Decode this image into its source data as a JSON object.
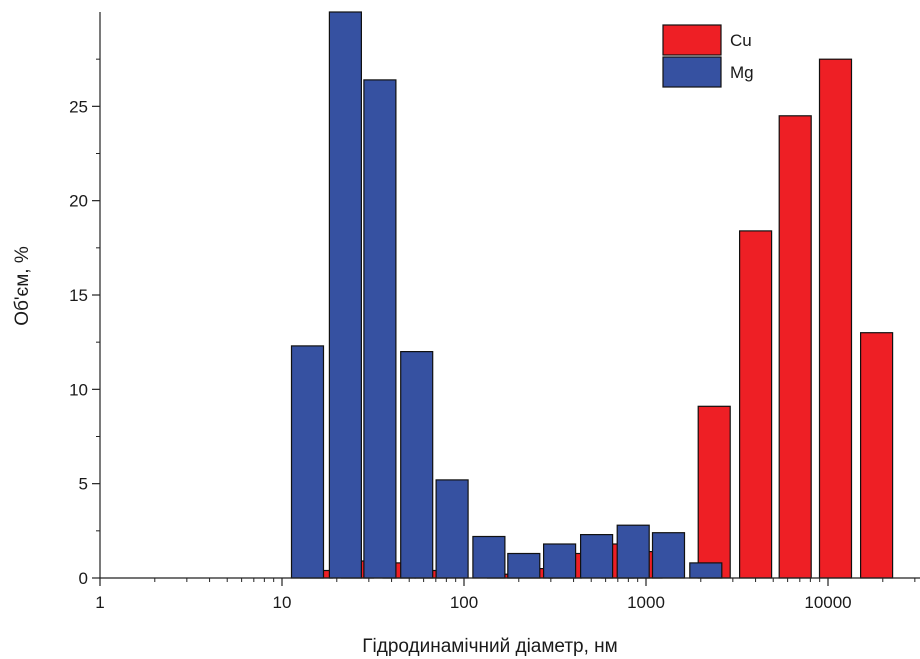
{
  "chart_data": {
    "type": "bar",
    "xlabel": "Гідродинамічний діаметр, нм",
    "ylabel": "Об'єм, %",
    "x_scale": "log",
    "xlim": [
      1,
      30000
    ],
    "ylim": [
      0,
      30
    ],
    "x_ticks": [
      {
        "value": 1,
        "label": "1"
      },
      {
        "value": 10,
        "label": "10"
      },
      {
        "value": 100,
        "label": "100"
      },
      {
        "value": 1000,
        "label": "1000"
      },
      {
        "value": 10000,
        "label": "10000"
      }
    ],
    "y_ticks": [
      {
        "value": 0,
        "label": "0"
      },
      {
        "value": 5,
        "label": "5"
      },
      {
        "value": 10,
        "label": "10"
      },
      {
        "value": 15,
        "label": "15"
      },
      {
        "value": 20,
        "label": "20"
      },
      {
        "value": 25,
        "label": "25"
      }
    ],
    "legend_position": "top-right",
    "series": [
      {
        "name": "Cu",
        "color": "#ee1f25",
        "bars": [
          {
            "x": 15.5,
            "value": 0.4
          },
          {
            "x": 26,
            "value": 0.9
          },
          {
            "x": 44,
            "value": 0.8
          },
          {
            "x": 66,
            "value": 0.4
          },
          {
            "x": 165,
            "value": 0.2
          },
          {
            "x": 250,
            "value": 0.5
          },
          {
            "x": 360,
            "value": 1.3
          },
          {
            "x": 700,
            "value": 1.8
          },
          {
            "x": 1000,
            "value": 1.4
          },
          {
            "x": 2370,
            "value": 9.1
          },
          {
            "x": 4000,
            "value": 18.4
          },
          {
            "x": 6600,
            "value": 24.5
          },
          {
            "x": 11000,
            "value": 27.5
          },
          {
            "x": 18500,
            "value": 13.0
          }
        ]
      },
      {
        "name": "Mg",
        "color": "#3651a1",
        "bars": [
          {
            "x": 13.8,
            "value": 12.3
          },
          {
            "x": 22.3,
            "value": 30.0
          },
          {
            "x": 34.5,
            "value": 26.4
          },
          {
            "x": 55,
            "value": 12.0
          },
          {
            "x": 86,
            "value": 5.2
          },
          {
            "x": 137,
            "value": 2.2
          },
          {
            "x": 213,
            "value": 1.3
          },
          {
            "x": 335,
            "value": 1.8
          },
          {
            "x": 535,
            "value": 2.3
          },
          {
            "x": 850,
            "value": 2.8
          },
          {
            "x": 1330,
            "value": 2.4
          },
          {
            "x": 2130,
            "value": 0.8
          }
        ]
      }
    ]
  }
}
